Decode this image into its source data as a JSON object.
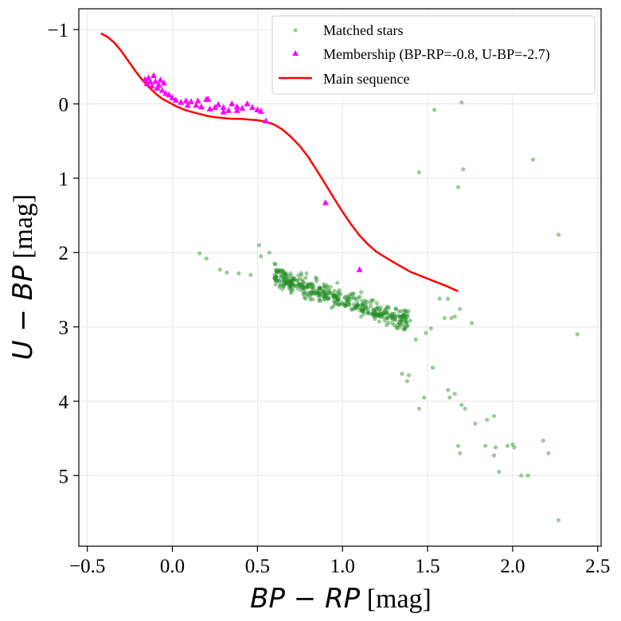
{
  "chart_data": {
    "type": "scatter",
    "xlabel_math": "BP − RP",
    "xlabel_unit": " [mag]",
    "ylabel_math": "U − BP",
    "ylabel_unit": " [mag]",
    "xlim": [
      -0.55,
      2.52
    ],
    "ylim": [
      5.95,
      -1.28
    ],
    "y_inverted": true,
    "grid": true,
    "legend_position": "top-right",
    "xticks": [
      -0.5,
      0.0,
      0.5,
      1.0,
      1.5,
      2.0,
      2.5
    ],
    "xtick_labels": [
      "−0.5",
      "0.0",
      "0.5",
      "1.0",
      "1.5",
      "2.0",
      "2.5"
    ],
    "yticks": [
      -1,
      0,
      1,
      2,
      3,
      4,
      5
    ],
    "ytick_labels": [
      "−1",
      "0",
      "1",
      "2",
      "3",
      "4",
      "5"
    ],
    "colors": {
      "matched": "#228B22",
      "membership": "#ff00ff",
      "main_sequence": "#ff0000"
    },
    "series": [
      {
        "name": "Matched stars",
        "kind": "scatter",
        "seed": 17,
        "outliers": [
          [
            0.16,
            2.01
          ],
          [
            0.2,
            2.08
          ],
          [
            0.28,
            2.23
          ],
          [
            0.32,
            2.27
          ],
          [
            0.39,
            2.28
          ],
          [
            0.46,
            2.3
          ],
          [
            0.51,
            1.9
          ],
          [
            0.52,
            2.05
          ],
          [
            0.57,
            2.0
          ],
          [
            0.6,
            2.15
          ],
          [
            1.54,
            0.08
          ],
          [
            1.7,
            -0.02
          ],
          [
            1.71,
            0.88
          ],
          [
            2.12,
            0.75
          ],
          [
            1.45,
            0.92
          ],
          [
            2.27,
            1.76
          ],
          [
            1.68,
            1.12
          ],
          [
            1.49,
            3.08
          ],
          [
            1.43,
            3.17
          ],
          [
            1.52,
            3.02
          ],
          [
            1.57,
            2.62
          ],
          [
            1.62,
            2.62
          ],
          [
            1.6,
            2.88
          ],
          [
            1.64,
            2.88
          ],
          [
            1.66,
            2.86
          ],
          [
            1.69,
            2.76
          ],
          [
            1.76,
            2.95
          ],
          [
            1.35,
            3.63
          ],
          [
            1.38,
            3.73
          ],
          [
            1.39,
            3.65
          ],
          [
            1.45,
            4.1
          ],
          [
            1.48,
            3.95
          ],
          [
            1.53,
            3.55
          ],
          [
            1.62,
            3.85
          ],
          [
            1.63,
            3.95
          ],
          [
            1.66,
            3.9
          ],
          [
            1.7,
            4.05
          ],
          [
            1.72,
            4.1
          ],
          [
            1.78,
            4.3
          ],
          [
            1.85,
            4.25
          ],
          [
            1.89,
            4.2
          ],
          [
            1.84,
            4.6
          ],
          [
            1.89,
            4.73
          ],
          [
            1.9,
            4.62
          ],
          [
            1.97,
            4.6
          ],
          [
            2.0,
            4.58
          ],
          [
            2.01,
            4.62
          ],
          [
            2.05,
            5.0
          ],
          [
            2.09,
            5.0
          ],
          [
            2.18,
            4.53
          ],
          [
            2.21,
            4.7
          ],
          [
            1.92,
            4.95
          ],
          [
            1.68,
            4.6
          ],
          [
            1.69,
            4.7
          ],
          [
            2.38,
            3.1
          ],
          [
            2.27,
            5.6
          ]
        ],
        "main_cloud": {
          "count": 420,
          "x_range": [
            0.6,
            1.4
          ],
          "y_at_x": [
            [
              0.6,
              2.32
            ],
            [
              0.9,
              2.55
            ],
            [
              1.2,
              2.8
            ],
            [
              1.4,
              2.92
            ]
          ],
          "spread": 0.13
        }
      },
      {
        "name": "Membership (BP-RP=-0.8, U-BP=-2.7)",
        "kind": "scatter",
        "points": [
          [
            -0.16,
            -0.33
          ],
          [
            -0.15,
            -0.27
          ],
          [
            -0.14,
            -0.35
          ],
          [
            -0.13,
            -0.3
          ],
          [
            -0.12,
            -0.24
          ],
          [
            -0.11,
            -0.38
          ],
          [
            -0.1,
            -0.3
          ],
          [
            -0.09,
            -0.21
          ],
          [
            -0.08,
            -0.25
          ],
          [
            -0.07,
            -0.32
          ],
          [
            -0.06,
            -0.18
          ],
          [
            -0.05,
            -0.28
          ],
          [
            -0.04,
            -0.14
          ],
          [
            -0.02,
            -0.12
          ],
          [
            0.0,
            -0.08
          ],
          [
            0.02,
            -0.05
          ],
          [
            0.05,
            -0.02
          ],
          [
            0.08,
            -0.04
          ],
          [
            0.11,
            -0.03
          ],
          [
            0.14,
            0.02
          ],
          [
            0.17,
            0.04
          ],
          [
            0.2,
            -0.06
          ],
          [
            0.22,
            0.07
          ],
          [
            0.25,
            0.05
          ],
          [
            0.27,
            0.01
          ],
          [
            0.3,
            0.05
          ],
          [
            0.33,
            0.09
          ],
          [
            0.35,
            0.0
          ],
          [
            0.38,
            0.04
          ],
          [
            0.41,
            0.06
          ],
          [
            0.44,
            0.0
          ],
          [
            0.47,
            0.05
          ],
          [
            0.5,
            0.08
          ],
          [
            0.52,
            0.1
          ],
          [
            0.55,
            0.23
          ],
          [
            0.21,
            -0.06
          ],
          [
            0.09,
            0.02
          ],
          [
            0.38,
            0.09
          ],
          [
            0.15,
            -0.04
          ],
          [
            0.3,
            0.11
          ],
          [
            0.9,
            1.33
          ],
          [
            1.1,
            2.23
          ]
        ]
      },
      {
        "name": "Main sequence",
        "kind": "line",
        "points": [
          [
            -0.42,
            -0.95
          ],
          [
            -0.38,
            -0.9
          ],
          [
            -0.34,
            -0.82
          ],
          [
            -0.3,
            -0.71
          ],
          [
            -0.26,
            -0.58
          ],
          [
            -0.22,
            -0.45
          ],
          [
            -0.18,
            -0.33
          ],
          [
            -0.14,
            -0.23
          ],
          [
            -0.1,
            -0.14
          ],
          [
            -0.06,
            -0.07
          ],
          [
            -0.02,
            -0.02
          ],
          [
            0.02,
            0.03
          ],
          [
            0.06,
            0.07
          ],
          [
            0.1,
            0.1
          ],
          [
            0.15,
            0.13
          ],
          [
            0.2,
            0.16
          ],
          [
            0.25,
            0.18
          ],
          [
            0.3,
            0.19
          ],
          [
            0.35,
            0.2
          ],
          [
            0.4,
            0.2
          ],
          [
            0.45,
            0.21
          ],
          [
            0.5,
            0.22
          ],
          [
            0.55,
            0.24
          ],
          [
            0.6,
            0.28
          ],
          [
            0.65,
            0.35
          ],
          [
            0.7,
            0.45
          ],
          [
            0.75,
            0.57
          ],
          [
            0.8,
            0.72
          ],
          [
            0.85,
            0.9
          ],
          [
            0.9,
            1.08
          ],
          [
            0.95,
            1.27
          ],
          [
            1.0,
            1.45
          ],
          [
            1.05,
            1.62
          ],
          [
            1.1,
            1.77
          ],
          [
            1.15,
            1.89
          ],
          [
            1.2,
            1.99
          ],
          [
            1.3,
            2.13
          ],
          [
            1.4,
            2.26
          ],
          [
            1.5,
            2.35
          ],
          [
            1.6,
            2.44
          ],
          [
            1.68,
            2.52
          ]
        ]
      }
    ]
  }
}
